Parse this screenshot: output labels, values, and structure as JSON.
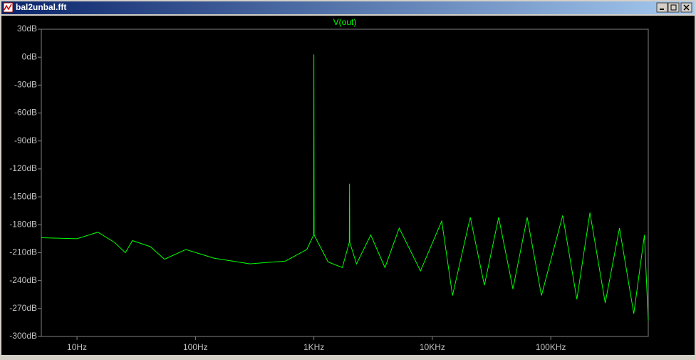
{
  "window": {
    "title": "bal2unbal.fft"
  },
  "chart_data": {
    "type": "line",
    "x_scale": "log",
    "xlim": [
      5,
      665000
    ],
    "ylim": [
      -300,
      30
    ],
    "xticks": [
      {
        "value": 10,
        "label": "10Hz"
      },
      {
        "value": 100,
        "label": "100Hz"
      },
      {
        "value": 1000,
        "label": "1KHz"
      },
      {
        "value": 10000,
        "label": "10KHz"
      },
      {
        "value": 100000,
        "label": "100KHz"
      }
    ],
    "yticks": [
      {
        "value": 30,
        "label": "30dB"
      },
      {
        "value": 0,
        "label": "0dB"
      },
      {
        "value": -30,
        "label": "-30dB"
      },
      {
        "value": -60,
        "label": "-60dB"
      },
      {
        "value": -90,
        "label": "-90dB"
      },
      {
        "value": -120,
        "label": "-120dB"
      },
      {
        "value": -150,
        "label": "-150dB"
      },
      {
        "value": -180,
        "label": "-180dB"
      },
      {
        "value": -210,
        "label": "-210dB"
      },
      {
        "value": -240,
        "label": "-240dB"
      },
      {
        "value": -270,
        "label": "-270dB"
      },
      {
        "value": -300,
        "label": "-300dB"
      }
    ],
    "series": [
      {
        "name": "V(out)",
        "color": "#00ff00",
        "x": [
          5,
          10,
          15,
          20.8,
          25.6,
          29.4,
          41.6,
          54.8,
          83,
          144,
          288,
          575,
          871,
          995,
          1000,
          1005,
          1318,
          1738,
          1990,
          2000,
          2010,
          2290,
          3020,
          3981,
          5250,
          7940,
          12000,
          14800,
          20900,
          27500,
          36300,
          47900,
          63200,
          83400,
          126000,
          166000,
          214000,
          288000,
          380000,
          502000,
          617000,
          665000
        ],
        "values": [
          -194,
          -195,
          -188,
          -199,
          -210,
          -197,
          -203.5,
          -217,
          -206.6,
          -216,
          -222,
          -219,
          -206.6,
          -191,
          3,
          -191,
          -220,
          -226,
          -199,
          -136,
          -199,
          -222,
          -191,
          -226,
          -183.6,
          -229.6,
          -176,
          -256,
          -172,
          -245,
          -172,
          -249,
          -172,
          -256,
          -170,
          -260,
          -167,
          -264,
          -183.6,
          -275.5,
          -191,
          -283
        ]
      }
    ]
  }
}
